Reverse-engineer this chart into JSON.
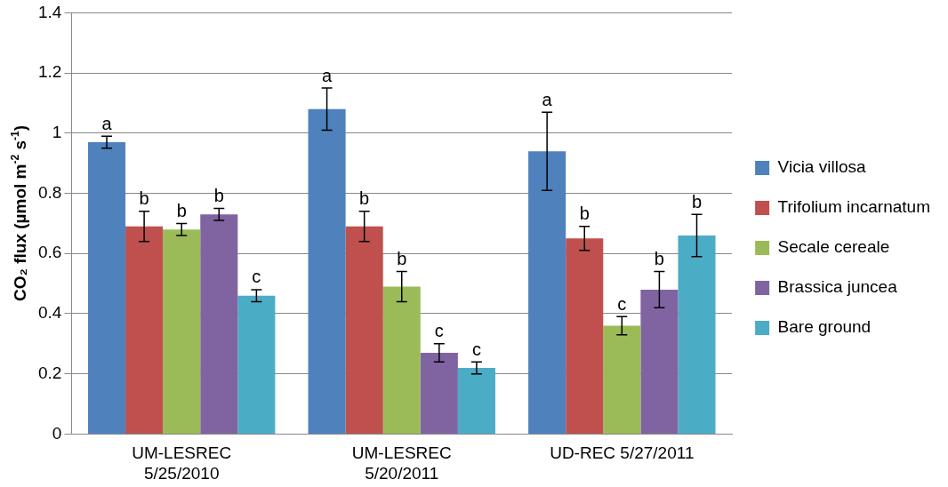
{
  "chart_data": {
    "type": "bar",
    "ylabel": "CO₂ flux (µmol m$^{-2}$ s$^{-1}$)",
    "categories": [
      "UM-LESREC\n5/25/2010",
      "UM-LESREC\n5/20/2011",
      "UD-REC 5/27/2011"
    ],
    "series": [
      {
        "name": "Vicia villosa",
        "color": "#4f81bd",
        "values": [
          0.97,
          1.08,
          0.94
        ],
        "errors": [
          0.02,
          0.07,
          0.13
        ],
        "value_labels": [
          "a",
          "a",
          "a"
        ]
      },
      {
        "name": "Trifolium incarnatum",
        "color": "#c0504d",
        "values": [
          0.69,
          0.69,
          0.65
        ],
        "errors": [
          0.05,
          0.05,
          0.04
        ],
        "value_labels": [
          "b",
          "b",
          "b"
        ]
      },
      {
        "name": "Secale cereale",
        "color": "#9bbb59",
        "values": [
          0.68,
          0.49,
          0.36
        ],
        "errors": [
          0.02,
          0.05,
          0.03
        ],
        "value_labels": [
          "b",
          "b",
          "c"
        ]
      },
      {
        "name": "Brassica juncea",
        "color": "#8064a2",
        "values": [
          0.73,
          0.27,
          0.48
        ],
        "errors": [
          0.02,
          0.03,
          0.06
        ],
        "value_labels": [
          "b",
          "c",
          "b"
        ]
      },
      {
        "name": "Bare ground",
        "color": "#4bacc6",
        "values": [
          0.46,
          0.22,
          0.66
        ],
        "errors": [
          0.02,
          0.02,
          0.07
        ],
        "value_labels": [
          "c",
          "c",
          "b"
        ]
      }
    ],
    "ylim": [
      0,
      1.4
    ],
    "yticks": [
      0,
      0.2,
      0.4,
      0.6,
      0.8,
      1,
      1.2,
      1.4
    ],
    "grid": "y",
    "legend": "right"
  }
}
